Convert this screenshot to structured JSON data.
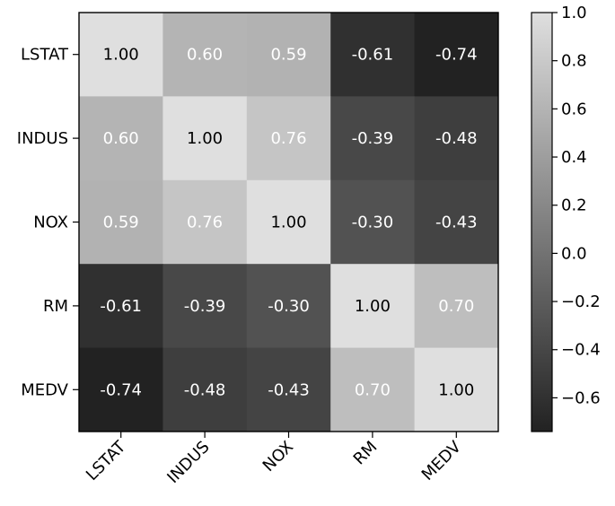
{
  "chart_data": {
    "type": "heatmap",
    "title": "",
    "xlabel": "",
    "ylabel": "",
    "row_labels": [
      "LSTAT",
      "INDUS",
      "NOX",
      "RM",
      "MEDV"
    ],
    "col_labels": [
      "LSTAT",
      "INDUS",
      "NOX",
      "RM",
      "MEDV"
    ],
    "values": [
      [
        1.0,
        0.6,
        0.59,
        -0.61,
        -0.74
      ],
      [
        0.6,
        1.0,
        0.76,
        -0.39,
        -0.48
      ],
      [
        0.59,
        0.76,
        1.0,
        -0.3,
        -0.43
      ],
      [
        -0.61,
        -0.39,
        -0.3,
        1.0,
        0.7
      ],
      [
        -0.74,
        -0.48,
        -0.43,
        0.7,
        1.0
      ]
    ],
    "cell_labels": [
      [
        "1.00",
        "0.60",
        "0.59",
        "-0.61",
        "-0.74"
      ],
      [
        "0.60",
        "1.00",
        "0.76",
        "-0.39",
        "-0.48"
      ],
      [
        "0.59",
        "0.76",
        "1.00",
        "-0.30",
        "-0.43"
      ],
      [
        "-0.61",
        "-0.39",
        "-0.30",
        "1.00",
        "0.70"
      ],
      [
        "-0.74",
        "-0.48",
        "-0.43",
        "0.70",
        "1.00"
      ]
    ],
    "colormap": "gray",
    "color_range": [
      -0.74,
      1.0
    ],
    "colorbar": {
      "ticks": [
        1.0,
        0.8,
        0.6,
        0.4,
        0.2,
        0.0,
        -0.2,
        -0.4,
        -0.6
      ],
      "tick_labels": [
        "1.0",
        "0.8",
        "0.6",
        "0.4",
        "0.2",
        "0.0",
        "−0.2",
        "−0.4",
        "−0.6"
      ]
    },
    "colors": {
      "text_dark": "#000000",
      "text_light": "#ffffff",
      "frame": "#000000"
    }
  }
}
